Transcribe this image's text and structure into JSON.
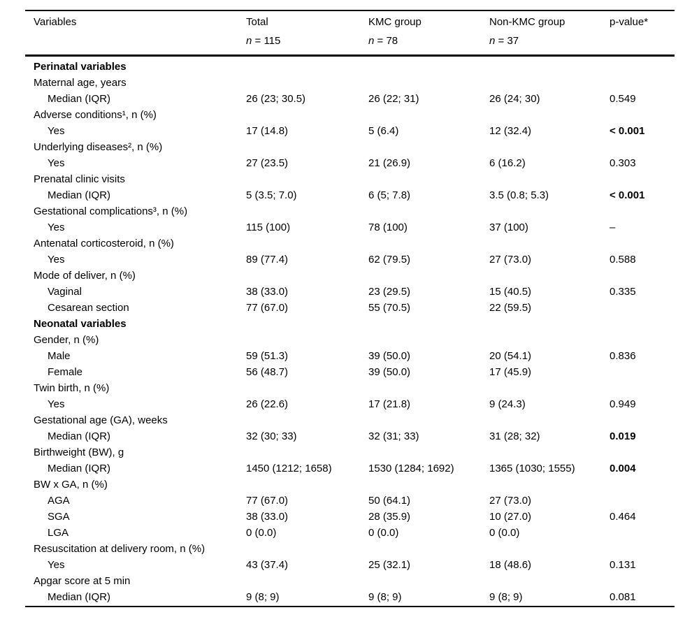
{
  "page": {
    "background": "#ffffff",
    "text_color": "#000000"
  },
  "table": {
    "columns": [
      {
        "label": "Variables",
        "sub_n": "",
        "sub_rest": ""
      },
      {
        "label": "Total",
        "sub_n": "n",
        "sub_rest": " = 115"
      },
      {
        "label": "KMC group",
        "sub_n": "n",
        "sub_rest": " = 78"
      },
      {
        "label": "Non-KMC group",
        "sub_n": "n",
        "sub_rest": " = 37"
      },
      {
        "label": "p-value*",
        "sub_n": "",
        "sub_rest": ""
      }
    ],
    "rows": [
      {
        "label": "Perinatal variables",
        "section": true,
        "total": "",
        "kmc": "",
        "nonkmc": "",
        "p": ""
      },
      {
        "label": "Maternal age, years",
        "total": "",
        "kmc": "",
        "nonkmc": "",
        "p": ""
      },
      {
        "label": "Median (IQR)",
        "indent": true,
        "total": "26 (23; 30.5)",
        "kmc": "26 (22; 31)",
        "nonkmc": "26 (24; 30)",
        "p": "0.549"
      },
      {
        "label": "Adverse conditions¹, n (%)",
        "total": "",
        "kmc": "",
        "nonkmc": "",
        "p": ""
      },
      {
        "label": "Yes",
        "indent": true,
        "total": "17 (14.8)",
        "kmc": "5 (6.4)",
        "nonkmc": "12 (32.4)",
        "p": "< 0.001",
        "p_bold": true
      },
      {
        "label": "Underlying diseases², n (%)",
        "total": "",
        "kmc": "",
        "nonkmc": "",
        "p": ""
      },
      {
        "label": "Yes",
        "indent": true,
        "total": "27 (23.5)",
        "kmc": "21 (26.9)",
        "nonkmc": "6 (16.2)",
        "p": "0.303"
      },
      {
        "label": "Prenatal clinic visits",
        "total": "",
        "kmc": "",
        "nonkmc": "",
        "p": ""
      },
      {
        "label": "Median (IQR)",
        "indent": true,
        "total": "5 (3.5; 7.0)",
        "kmc": "6 (5; 7.8)",
        "nonkmc": "3.5 (0.8; 5.3)",
        "p": "< 0.001",
        "p_bold": true
      },
      {
        "label": "Gestational complications³, n (%)",
        "total": "",
        "kmc": "",
        "nonkmc": "",
        "p": ""
      },
      {
        "label": "Yes",
        "indent": true,
        "total": "115 (100)",
        "kmc": "78 (100)",
        "nonkmc": "37 (100)",
        "p": "–"
      },
      {
        "label": "Antenatal corticosteroid, n (%)",
        "total": "",
        "kmc": "",
        "nonkmc": "",
        "p": ""
      },
      {
        "label": "Yes",
        "indent": true,
        "total": "89 (77.4)",
        "kmc": "62 (79.5)",
        "nonkmc": "27 (73.0)",
        "p": "0.588"
      },
      {
        "label": "Mode of deliver, n (%)",
        "total": "",
        "kmc": "",
        "nonkmc": "",
        "p": ""
      },
      {
        "label": "Vaginal",
        "indent": true,
        "total": "38 (33.0)",
        "kmc": "23 (29.5)",
        "nonkmc": "15 (40.5)",
        "p": "0.335"
      },
      {
        "label": "Cesarean section",
        "indent": true,
        "total": "77 (67.0)",
        "kmc": "55 (70.5)",
        "nonkmc": "22 (59.5)",
        "p": ""
      },
      {
        "label": "Neonatal variables",
        "section": true,
        "total": "",
        "kmc": "",
        "nonkmc": "",
        "p": ""
      },
      {
        "label": "Gender, n (%)",
        "total": "",
        "kmc": "",
        "nonkmc": "",
        "p": ""
      },
      {
        "label": "Male",
        "indent": true,
        "total": "59 (51.3)",
        "kmc": "39 (50.0)",
        "nonkmc": "20 (54.1)",
        "p": "0.836"
      },
      {
        "label": "Female",
        "indent": true,
        "total": "56 (48.7)",
        "kmc": "39 (50.0)",
        "nonkmc": "17 (45.9)",
        "p": ""
      },
      {
        "label": "Twin birth, n (%)",
        "total": "",
        "kmc": "",
        "nonkmc": "",
        "p": ""
      },
      {
        "label": "Yes",
        "indent": true,
        "total": "26 (22.6)",
        "kmc": "17 (21.8)",
        "nonkmc": "9 (24.3)",
        "p": "0.949"
      },
      {
        "label": "Gestational age (GA), weeks",
        "total": "",
        "kmc": "",
        "nonkmc": "",
        "p": ""
      },
      {
        "label": "Median (IQR)",
        "indent": true,
        "total": "32 (30; 33)",
        "kmc": "32 (31; 33)",
        "nonkmc": "31 (28; 32)",
        "p": "0.019",
        "p_bold": true
      },
      {
        "label": "Birthweight (BW), g",
        "total": "",
        "kmc": "",
        "nonkmc": "",
        "p": ""
      },
      {
        "label": "Median (IQR)",
        "indent": true,
        "total": "1450 (1212; 1658)",
        "kmc": "1530 (1284; 1692)",
        "nonkmc": "1365 (1030; 1555)",
        "p": "0.004",
        "p_bold": true
      },
      {
        "label": "BW x GA, n (%)",
        "total": "",
        "kmc": "",
        "nonkmc": "",
        "p": ""
      },
      {
        "label": "AGA",
        "indent": true,
        "total": "77 (67.0)",
        "kmc": "50 (64.1)",
        "nonkmc": "27 (73.0)",
        "p": ""
      },
      {
        "label": "SGA",
        "indent": true,
        "total": "38 (33.0)",
        "kmc": "28 (35.9)",
        "nonkmc": "10 (27.0)",
        "p": "0.464"
      },
      {
        "label": "LGA",
        "indent": true,
        "total": "0 (0.0)",
        "kmc": "0 (0.0)",
        "nonkmc": "0 (0.0)",
        "p": ""
      },
      {
        "label": "Resuscitation at delivery room, n (%)",
        "total": "",
        "kmc": "",
        "nonkmc": "",
        "p": ""
      },
      {
        "label": "Yes",
        "indent": true,
        "total": "43 (37.4)",
        "kmc": "25 (32.1)",
        "nonkmc": "18 (48.6)",
        "p": "0.131"
      },
      {
        "label": "Apgar score at 5 min",
        "total": "",
        "kmc": "",
        "nonkmc": "",
        "p": ""
      },
      {
        "label": "Median (IQR)",
        "indent": true,
        "total": "9 (8; 9)",
        "kmc": "9 (8; 9)",
        "nonkmc": "9 (8; 9)",
        "p": "0.081"
      }
    ]
  }
}
